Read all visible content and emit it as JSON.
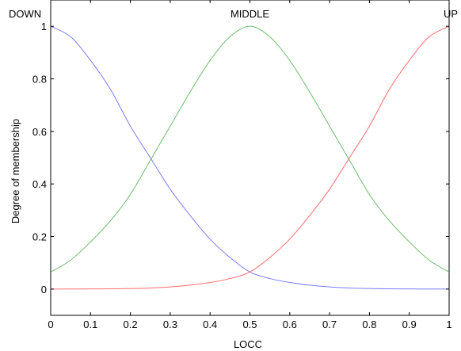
{
  "chart_data": {
    "type": "line",
    "xlabel": "LOCC",
    "ylabel": "Degree of membership",
    "xlim": [
      0,
      1
    ],
    "ylim": [
      -0.1,
      1.1
    ],
    "x_ticks": [
      "0",
      "0.1",
      "0.2",
      "0.3",
      "0.4",
      "0.5",
      "0.6",
      "0.7",
      "0.8",
      "0.9",
      "1"
    ],
    "y_ticks": [
      "0",
      "0.2",
      "0.4",
      "0.6",
      "0.8",
      "1"
    ],
    "grid": false,
    "x": [
      0,
      0.05,
      0.1,
      0.15,
      0.2,
      0.25,
      0.3,
      0.35,
      0.4,
      0.45,
      0.5,
      0.55,
      0.6,
      0.65,
      0.7,
      0.75,
      0.8,
      0.85,
      0.9,
      0.95,
      1
    ],
    "series": [
      {
        "name": "DOWN",
        "color": "#7a7aff",
        "values": [
          1,
          0.96,
          0.87,
          0.76,
          0.62,
          0.5,
          0.38,
          0.28,
          0.19,
          0.12,
          0.065,
          0.04,
          0.025,
          0.015,
          0.008,
          0.004,
          0.002,
          0.001,
          0.0005,
          0.0002,
          0
        ]
      },
      {
        "name": "MIDDLE",
        "color": "#6dbd6d",
        "values": [
          0.065,
          0.11,
          0.18,
          0.26,
          0.36,
          0.49,
          0.62,
          0.75,
          0.87,
          0.96,
          1,
          0.96,
          0.87,
          0.75,
          0.62,
          0.49,
          0.36,
          0.26,
          0.18,
          0.11,
          0.065
        ]
      },
      {
        "name": "UP",
        "color": "#ff6b6b",
        "values": [
          0,
          0.0002,
          0.0005,
          0.001,
          0.002,
          0.004,
          0.008,
          0.015,
          0.025,
          0.04,
          0.065,
          0.12,
          0.19,
          0.28,
          0.38,
          0.5,
          0.62,
          0.76,
          0.87,
          0.96,
          1
        ]
      }
    ],
    "mf_labels": [
      {
        "text": "DOWN",
        "x": 0
      },
      {
        "text": "MIDDLE",
        "x": 0.5
      },
      {
        "text": "UP",
        "x": 1
      }
    ]
  }
}
